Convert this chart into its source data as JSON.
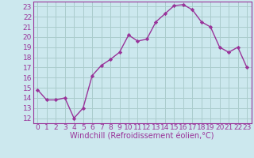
{
  "x": [
    0,
    1,
    2,
    3,
    4,
    5,
    6,
    7,
    8,
    9,
    10,
    11,
    12,
    13,
    14,
    15,
    16,
    17,
    18,
    19,
    20,
    21,
    22,
    23
  ],
  "y": [
    14.8,
    13.8,
    13.8,
    14.0,
    12.0,
    13.0,
    16.2,
    17.2,
    17.8,
    18.5,
    20.2,
    19.6,
    19.8,
    21.5,
    22.3,
    23.1,
    23.2,
    22.7,
    21.5,
    21.0,
    19.0,
    18.5,
    19.0,
    17.0
  ],
  "line_color": "#993399",
  "marker": "D",
  "marker_size": 2.2,
  "linewidth": 1.0,
  "xlabel": "Windchill (Refroidissement éolien,°C)",
  "xlim": [
    -0.5,
    23.5
  ],
  "ylim": [
    11.5,
    23.5
  ],
  "yticks": [
    12,
    13,
    14,
    15,
    16,
    17,
    18,
    19,
    20,
    21,
    22,
    23
  ],
  "xticks": [
    0,
    1,
    2,
    3,
    4,
    5,
    6,
    7,
    8,
    9,
    10,
    11,
    12,
    13,
    14,
    15,
    16,
    17,
    18,
    19,
    20,
    21,
    22,
    23
  ],
  "background_color": "#cce8ee",
  "grid_color": "#aacccc",
  "tick_color": "#993399",
  "label_color": "#993399",
  "axis_color": "#993399",
  "tick_fontsize": 6.5,
  "xlabel_fontsize": 7.0
}
